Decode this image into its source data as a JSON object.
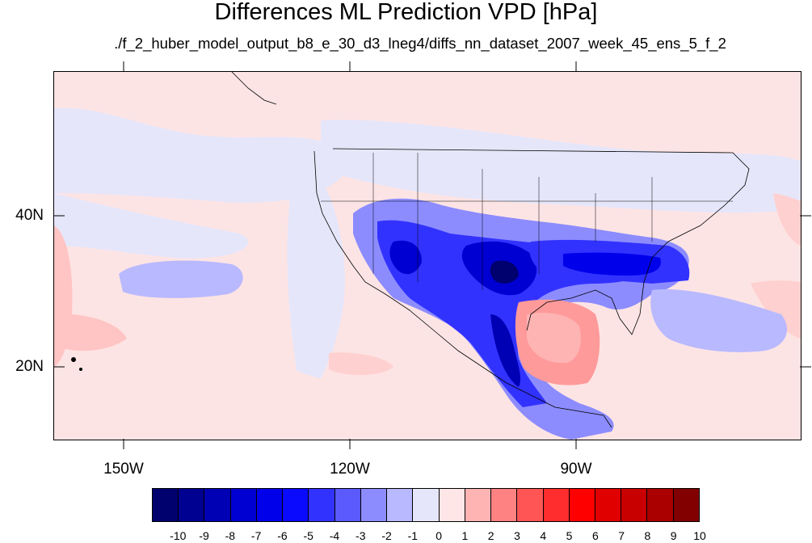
{
  "title": "Differences ML Prediction VPD [hPa]",
  "subtitle": "./f_2_huber_model_output_b8_e_30_d3_lneg4/diffs_nn_dataset_2007_week_45_ens_5_f_2",
  "map": {
    "projection": "cylindrical-equidistant",
    "lon_range": [
      -159.5,
      -60
    ],
    "lat_range": [
      11,
      59.5
    ],
    "lat_ticks": [
      "40N",
      "20N"
    ],
    "lon_ticks": [
      "150W",
      "120W",
      "90W"
    ]
  },
  "colorbar": {
    "labels": [
      "-10",
      "-9",
      "-8",
      "-7",
      "-6",
      "-5",
      "-4",
      "-3",
      "-2",
      "-1",
      "0",
      "1",
      "2",
      "3",
      "4",
      "5",
      "6",
      "7",
      "8",
      "9",
      "10"
    ],
    "colors": [
      "#00006e",
      "#000091",
      "#0000b4",
      "#0000d2",
      "#0000eb",
      "#0a0aff",
      "#3232ff",
      "#5a5aff",
      "#8c8cff",
      "#b9b9ff",
      "#e6e6fa",
      "#ffe6e6",
      "#ffb4b4",
      "#ff8282",
      "#ff5555",
      "#ff2d2d",
      "#ff0000",
      "#e10000",
      "#c80000",
      "#aa0000",
      "#820000"
    ]
  }
}
